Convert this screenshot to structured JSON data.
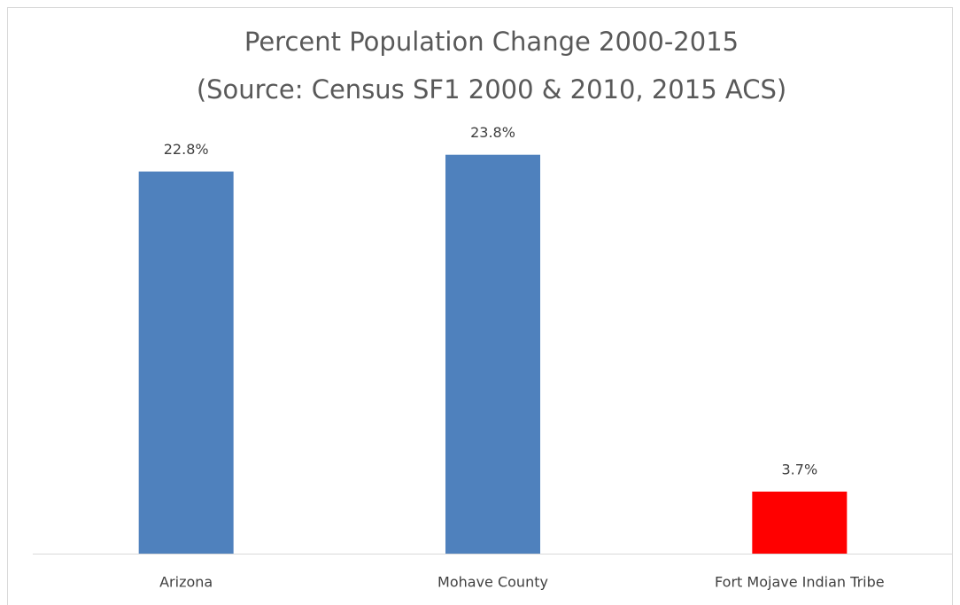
{
  "chart_data": {
    "type": "bar",
    "title": "Percent Population Change 2000-2015",
    "subtitle": "(Source: Census SF1 2000 & 2010, 2015 ACS)",
    "categories": [
      "Arizona",
      "Mohave County",
      "Fort Mojave Indian Tribe"
    ],
    "values": [
      22.8,
      23.8,
      3.7
    ],
    "value_labels": [
      "22.8%",
      "23.8%",
      "3.7%"
    ],
    "colors": [
      "#4f81bd",
      "#4f81bd",
      "#ff0000"
    ],
    "ylim": [
      0,
      25
    ]
  }
}
